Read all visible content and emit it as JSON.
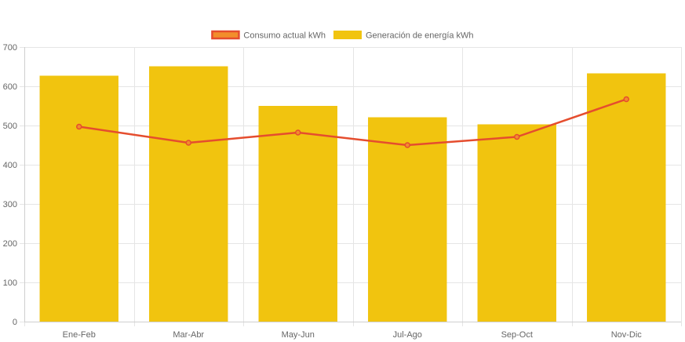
{
  "chart_data": {
    "type": "bar",
    "categories": [
      "Ene-Feb",
      "Mar-Abr",
      "May-Jun",
      "Jul-Ago",
      "Sep-Oct",
      "Nov-Dic"
    ],
    "series": [
      {
        "name": "Consumo actual kWh",
        "type": "line",
        "values": [
          497,
          456,
          482,
          450,
          471,
          567
        ],
        "color": "#e54d2e",
        "legend_fill": "#f28e2b"
      },
      {
        "name": "Generación de energía kWh",
        "type": "bar",
        "values": [
          627,
          651,
          550,
          521,
          503,
          633
        ],
        "color": "#f1c40f"
      }
    ],
    "ylim": [
      0,
      700
    ],
    "yticks": [
      0,
      100,
      200,
      300,
      400,
      500,
      600,
      700
    ],
    "grid": true,
    "legend_position": "top-center",
    "title": "",
    "xlabel": "",
    "ylabel": ""
  }
}
